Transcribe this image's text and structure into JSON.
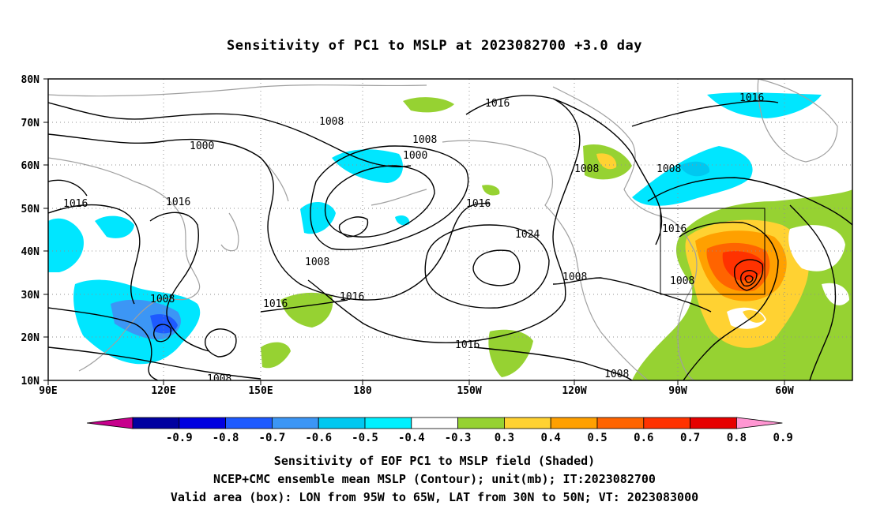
{
  "title": "Sensitivity of PC1 to MSLP at 2023082700 +3.0 day",
  "map": {
    "lat_labels": [
      "80N",
      "70N",
      "60N",
      "50N",
      "40N",
      "30N",
      "20N",
      "10N"
    ],
    "lon_labels": [
      "90E",
      "120E",
      "150E",
      "180",
      "150W",
      "120W",
      "90W",
      "60W"
    ],
    "grid": "dotted",
    "contour_labels": [
      "1016",
      "1008",
      "1000",
      "1008",
      "1000",
      "1016",
      "1016",
      "1016",
      "1008",
      "1008",
      "1016",
      "1024",
      "1008",
      "1016",
      "1008",
      "1016",
      "1008",
      "1016",
      "1016",
      "1008",
      "1008",
      "1008"
    ],
    "valid_box": {
      "lon_west": "95W",
      "lon_east": "65W",
      "lat_south": "30N",
      "lat_north": "50N"
    }
  },
  "colorbar": {
    "labels": [
      "-0.9",
      "-0.8",
      "-0.7",
      "-0.6",
      "-0.5",
      "-0.4",
      "-0.3",
      "0.3",
      "0.4",
      "0.5",
      "0.6",
      "0.7",
      "0.8",
      "0.9"
    ],
    "colors": [
      "#c7008c",
      "#0000a0",
      "#0000e0",
      "#1e5aff",
      "#3c96f5",
      "#00c8f0",
      "#00f0ff",
      "#ffffff",
      "#96d232",
      "#ffd232",
      "#ffa000",
      "#ff6400",
      "#ff3200",
      "#e60000",
      "#ff96d2"
    ]
  },
  "captions": [
    "Sensitivity of EOF PC1 to MSLP field (Shaded)",
    "NCEP+CMC ensemble mean MSLP (Contour); unit(mb); IT:2023082700",
    "Valid area (box): LON from 95W to 65W, LAT from 30N to 50N; VT: 2023083000"
  ]
}
